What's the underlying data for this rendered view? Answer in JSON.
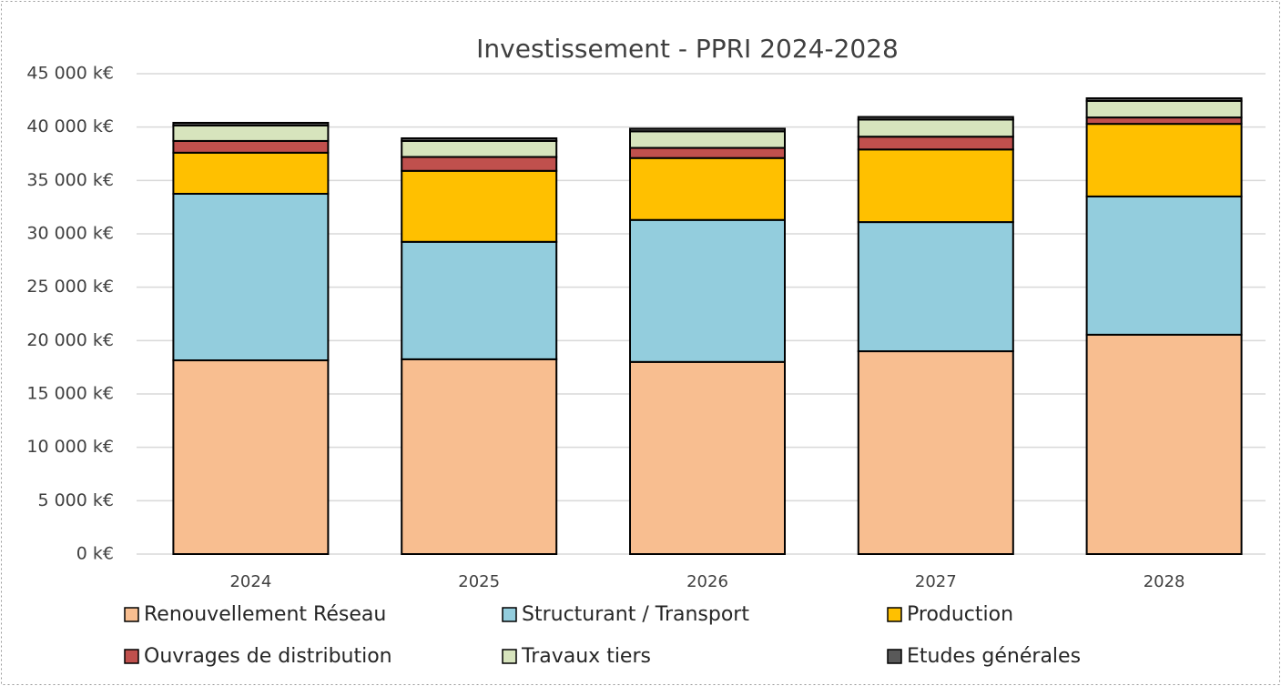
{
  "chart_data": {
    "type": "stacked_bar",
    "title": "Investissement - PPRI 2024-2028",
    "categories": [
      "2024",
      "2025",
      "2026",
      "2027",
      "2028"
    ],
    "series": [
      {
        "name": "Renouvellement Réseau",
        "color": "#f8be90",
        "values": [
          18150,
          18250,
          18000,
          19000,
          20550
        ]
      },
      {
        "name": "Structurant / Transport",
        "color": "#93cddd",
        "values": [
          15600,
          11000,
          13300,
          12100,
          12950
        ]
      },
      {
        "name": "Production",
        "color": "#ffc000",
        "values": [
          3850,
          6650,
          5800,
          6800,
          6800
        ]
      },
      {
        "name": "Ouvrages de distribution",
        "color": "#c0504d",
        "values": [
          1100,
          1300,
          950,
          1200,
          600
        ]
      },
      {
        "name": "Travaux tiers",
        "color": "#d7e4bd",
        "values": [
          1450,
          1500,
          1550,
          1600,
          1550
        ]
      },
      {
        "name": "Etudes générales",
        "color": "#595959",
        "values": [
          250,
          250,
          250,
          250,
          250
        ]
      }
    ],
    "ylim": [
      0,
      45000
    ],
    "yticks": [
      {
        "value": 0,
        "label": "0 k€"
      },
      {
        "value": 5000,
        "label": "5 000 k€"
      },
      {
        "value": 10000,
        "label": "10 000 k€"
      },
      {
        "value": 15000,
        "label": "15 000 k€"
      },
      {
        "value": 20000,
        "label": "20 000 k€"
      },
      {
        "value": 25000,
        "label": "25 000 k€"
      },
      {
        "value": 30000,
        "label": "30 000 k€"
      },
      {
        "value": 35000,
        "label": "35 000 k€"
      },
      {
        "value": 40000,
        "label": "40 000 k€"
      },
      {
        "value": 45000,
        "label": "45 000 k€"
      }
    ],
    "grid": true,
    "legend": "bottom"
  }
}
